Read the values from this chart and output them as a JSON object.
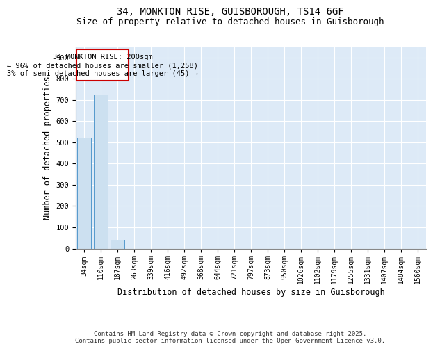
{
  "title_line1": "34, MONKTON RISE, GUISBOROUGH, TS14 6GF",
  "title_line2": "Size of property relative to detached houses in Guisborough",
  "xlabel": "Distribution of detached houses by size in Guisborough",
  "ylabel": "Number of detached properties",
  "categories": [
    "34sqm",
    "110sqm",
    "187sqm",
    "263sqm",
    "339sqm",
    "416sqm",
    "492sqm",
    "568sqm",
    "644sqm",
    "721sqm",
    "797sqm",
    "873sqm",
    "950sqm",
    "1026sqm",
    "1102sqm",
    "1179sqm",
    "1255sqm",
    "1331sqm",
    "1407sqm",
    "1484sqm",
    "1560sqm"
  ],
  "values": [
    522,
    725,
    40,
    0,
    0,
    0,
    0,
    0,
    0,
    0,
    0,
    0,
    0,
    0,
    0,
    0,
    0,
    0,
    0,
    0,
    0
  ],
  "bar_color": "#cce0f0",
  "bar_edge_color": "#5599cc",
  "annotation_line1": "34 MONKTON RISE: 200sqm",
  "annotation_line2": "← 96% of detached houses are smaller (1,258)",
  "annotation_line3": "3% of semi-detached houses are larger (45) →",
  "annotation_box_color": "#cc0000",
  "ylim": [
    0,
    950
  ],
  "yticks": [
    0,
    100,
    200,
    300,
    400,
    500,
    600,
    700,
    800,
    900
  ],
  "background_color": "#ddeaf7",
  "grid_color": "#ffffff",
  "fig_background": "#ffffff",
  "footer_text": "Contains HM Land Registry data © Crown copyright and database right 2025.\nContains public sector information licensed under the Open Government Licence v3.0.",
  "title_fontsize": 10,
  "subtitle_fontsize": 9,
  "tick_fontsize": 7,
  "label_fontsize": 8.5,
  "annotation_fontsize": 7.5,
  "footer_fontsize": 6.5
}
